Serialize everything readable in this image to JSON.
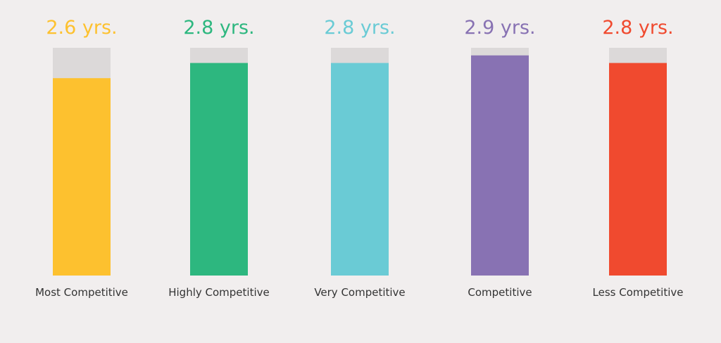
{
  "chart_data": {
    "type": "bar",
    "categories": [
      "Most Competitive",
      "Highly Competitive",
      "Very Competitive",
      "Competitive",
      "Less Competitive"
    ],
    "values": [
      2.6,
      2.8,
      2.8,
      2.9,
      2.8
    ],
    "value_labels": [
      "2.6 yrs.",
      "2.8 yrs.",
      "2.8 yrs.",
      "2.9 yrs.",
      "2.8 yrs."
    ],
    "ylim": [
      0,
      3.0
    ],
    "colors": [
      "#fdc12f",
      "#2db77f",
      "#6acbd5",
      "#8872b3",
      "#f04a2f"
    ],
    "track_color": "#dcd9d9",
    "grid": false,
    "title": "",
    "xlabel": "",
    "ylabel": ""
  }
}
